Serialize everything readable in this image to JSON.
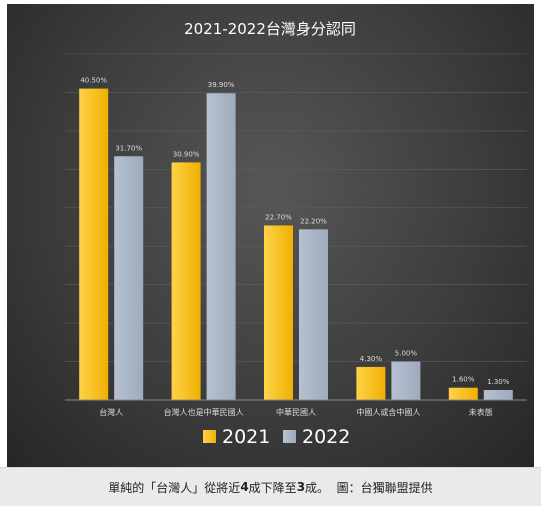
{
  "chart_data": {
    "type": "bar",
    "title": "2021-2022台灣身分認同",
    "categories": [
      "台灣人",
      "台灣人也是中華民國人",
      "中華民國人",
      "中國人或含中國人",
      "未表態"
    ],
    "series": [
      {
        "name": "2021",
        "values": [
          40.5,
          30.9,
          22.7,
          4.3,
          1.6
        ],
        "labels": [
          "40.50%",
          "30.90%",
          "22.70%",
          "4.30%",
          "1.60%"
        ]
      },
      {
        "name": "2022",
        "values": [
          31.7,
          39.9,
          22.2,
          5.0,
          1.3
        ],
        "labels": [
          "31.70%",
          "39.90%",
          "22.20%",
          "5.00%",
          "1.30%"
        ]
      }
    ],
    "ylim": [
      0,
      45
    ],
    "grid": true,
    "legend": "bottom",
    "colors": {
      "2021": "#f5bd0c",
      "2022": "#a9b5c6"
    }
  },
  "caption": {
    "text_a": "單純的「台灣人」從將近",
    "num_a": "4",
    "text_b": "成下降至",
    "num_b": "3",
    "text_c": "成。  圖：台獨聯盟提供"
  }
}
